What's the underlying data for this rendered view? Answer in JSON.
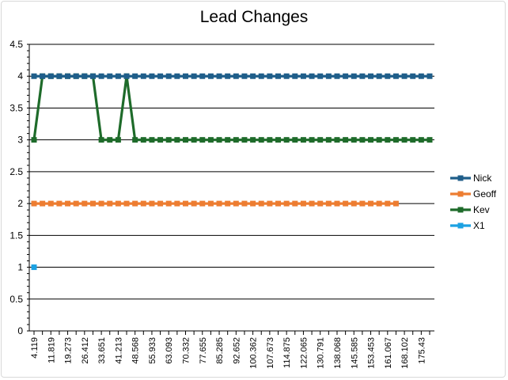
{
  "chart_data": {
    "type": "line",
    "title": "Lead Changes",
    "xlabel": "",
    "ylabel": "",
    "ylim": [
      0,
      4.5
    ],
    "ytick_step": 0.5,
    "y_ticks": [
      "0",
      "0.5",
      "1",
      "1.5",
      "2",
      "2.5",
      "3",
      "3.5",
      "4",
      "4.5"
    ],
    "x_ticks": [
      "4.119",
      "11.819",
      "19.273",
      "26.412",
      "33.651",
      "41.213",
      "48.568",
      "55.933",
      "63.093",
      "70.332",
      "77.655",
      "85.285",
      "92.652",
      "100.362",
      "107.673",
      "114.875",
      "122.065",
      "130.791",
      "138.068",
      "145.585",
      "153.453",
      "161.067",
      "168.102",
      "175.43"
    ],
    "x_tick_every": 2,
    "point_count": 48,
    "grid": true,
    "legend": "right",
    "series": [
      {
        "name": "Nick",
        "color": "#1f5e8a",
        "values": [
          4,
          4,
          4,
          4,
          4,
          4,
          4,
          4,
          4,
          4,
          4,
          4,
          4,
          4,
          4,
          4,
          4,
          4,
          4,
          4,
          4,
          4,
          4,
          4,
          4,
          4,
          4,
          4,
          4,
          4,
          4,
          4,
          4,
          4,
          4,
          4,
          4,
          4,
          4,
          4,
          4,
          4,
          4,
          4,
          4,
          4,
          4,
          4
        ]
      },
      {
        "name": "Geoff",
        "color": "#ed7d31",
        "values": [
          2,
          2,
          2,
          2,
          2,
          2,
          2,
          2,
          2,
          2,
          2,
          2,
          2,
          2,
          2,
          2,
          2,
          2,
          2,
          2,
          2,
          2,
          2,
          2,
          2,
          2,
          2,
          2,
          2,
          2,
          2,
          2,
          2,
          2,
          2,
          2,
          2,
          2,
          2,
          2,
          2,
          2,
          2,
          2
        ]
      },
      {
        "name": "Kev",
        "color": "#1e6b2a",
        "values": [
          3,
          4,
          4,
          4,
          4,
          4,
          4,
          4,
          3,
          3,
          3,
          4,
          3,
          3,
          3,
          3,
          3,
          3,
          3,
          3,
          3,
          3,
          3,
          3,
          3,
          3,
          3,
          3,
          3,
          3,
          3,
          3,
          3,
          3,
          3,
          3,
          3,
          3,
          3,
          3,
          3,
          3,
          3,
          3,
          3,
          3,
          3,
          3
        ]
      },
      {
        "name": "X1",
        "color": "#1ba1e2",
        "values": [
          1
        ]
      }
    ]
  }
}
